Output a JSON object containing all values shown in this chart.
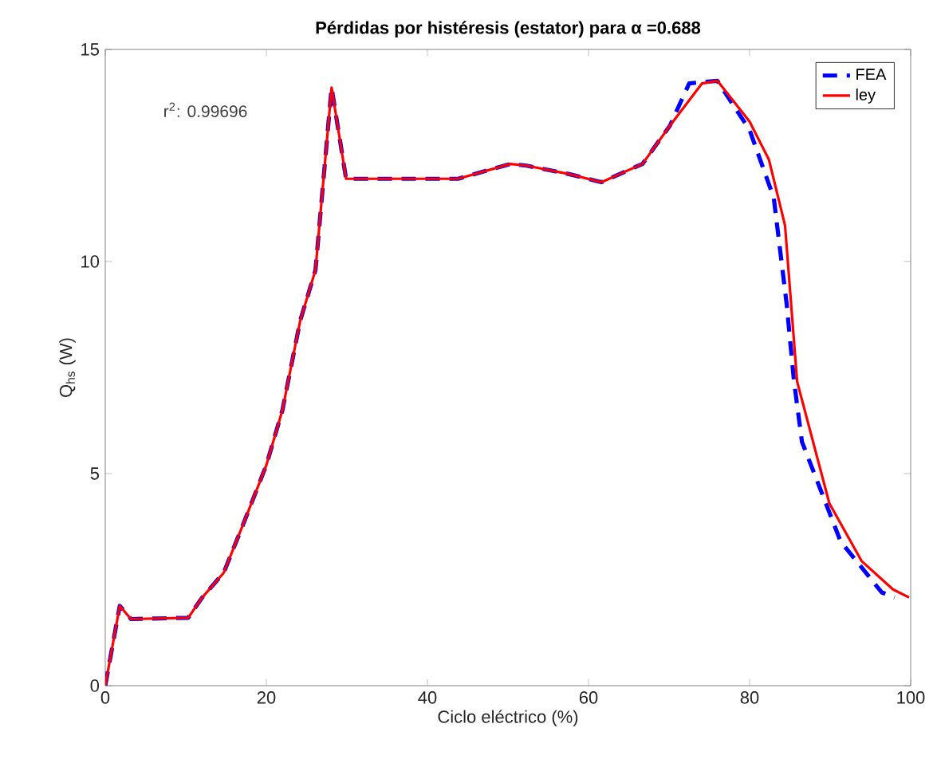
{
  "chart_data": {
    "type": "line",
    "title": "Pérdidas por histéresis (estator) para α =0.688",
    "xlabel": "Ciclo eléctrico (%)",
    "ylabel": "Q$_{hs}$ (W)",
    "annotations": [
      "r$^{2}$: 0.99696"
    ],
    "xlim": [
      0,
      100
    ],
    "ylim": [
      0,
      15
    ],
    "xticks": [
      0,
      20,
      40,
      60,
      80,
      100
    ],
    "yticks": [
      0,
      5,
      10,
      15
    ],
    "grid": false,
    "legend": "top right",
    "marker": "none",
    "series": [
      {
        "name": "FEA",
        "color": "#0000ff",
        "line_style": "dashed",
        "x": [
          0,
          1.8,
          3.2,
          10.3,
          12,
          14.7,
          17.2,
          20,
          22,
          24.2,
          26.1,
          28.1,
          29.9,
          43.8,
          50.3,
          52.3,
          57.6,
          61.6,
          66.7,
          70.1,
          72.5,
          76,
          80,
          83,
          84.6,
          85.5,
          86.5,
          91.3,
          96.4,
          98
        ],
        "values": [
          0,
          1.88,
          1.57,
          1.6,
          2.07,
          2.66,
          3.84,
          5.2,
          6.5,
          8.6,
          9.8,
          14.1,
          11.95,
          11.95,
          12.3,
          12.26,
          12.06,
          11.87,
          12.3,
          13.2,
          14.2,
          14.26,
          13.1,
          11.5,
          9.0,
          7.2,
          5.75,
          3.4,
          2.2,
          2.08
        ]
      },
      {
        "name": "ley",
        "color": "#ff0000",
        "line_style": "solid",
        "x": [
          0,
          1.8,
          3.2,
          10.3,
          12,
          14.7,
          17.2,
          20,
          22,
          24.2,
          26.1,
          28.1,
          29.9,
          43.8,
          50.3,
          52.3,
          57.6,
          61.6,
          66.7,
          70.1,
          74.1,
          76,
          80,
          82.4,
          84.4,
          85.9,
          89.9,
          93.9,
          97.8,
          99.8
        ],
        "values": [
          0,
          1.88,
          1.57,
          1.6,
          2.07,
          2.66,
          3.84,
          5.2,
          6.5,
          8.6,
          9.8,
          14.1,
          11.95,
          11.95,
          12.3,
          12.26,
          12.06,
          11.87,
          12.3,
          13.2,
          14.2,
          14.26,
          13.3,
          12.4,
          10.85,
          7.17,
          4.3,
          2.94,
          2.27,
          2.08
        ]
      }
    ]
  }
}
